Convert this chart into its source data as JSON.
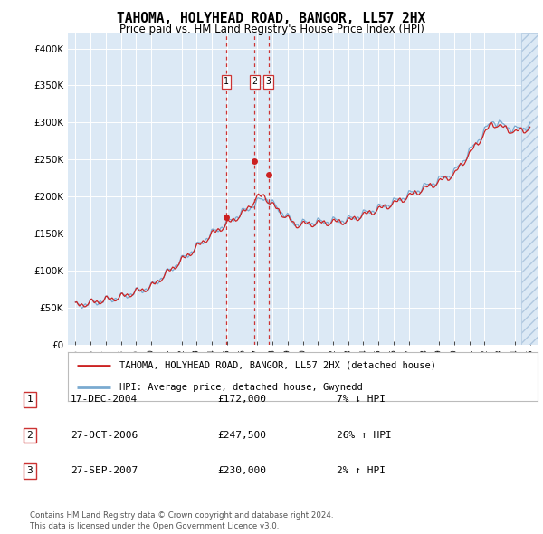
{
  "title": "TAHOMA, HOLYHEAD ROAD, BANGOR, LL57 2HX",
  "subtitle": "Price paid vs. HM Land Registry's House Price Index (HPI)",
  "legend_line1": "TAHOMA, HOLYHEAD ROAD, BANGOR, LL57 2HX (detached house)",
  "legend_line2": "HPI: Average price, detached house, Gwynedd",
  "footer1": "Contains HM Land Registry data © Crown copyright and database right 2024.",
  "footer2": "This data is licensed under the Open Government Licence v3.0.",
  "transactions": [
    {
      "num": 1,
      "date": "17-DEC-2004",
      "price": "£172,000",
      "rel": "7% ↓ HPI",
      "year": 2004.96,
      "value": 172000
    },
    {
      "num": 2,
      "date": "27-OCT-2006",
      "price": "£247,500",
      "rel": "26% ↑ HPI",
      "year": 2006.82,
      "value": 247500
    },
    {
      "num": 3,
      "date": "27-SEP-2007",
      "price": "£230,000",
      "rel": "2% ↑ HPI",
      "year": 2007.74,
      "value": 230000
    }
  ],
  "background_color": "#dce9f5",
  "hpi_color": "#7aaad0",
  "price_color": "#cc2222",
  "dashed_color": "#cc3333",
  "ylim": [
    0,
    420000
  ],
  "yticks": [
    0,
    50000,
    100000,
    150000,
    200000,
    250000,
    300000,
    350000,
    400000
  ],
  "ytick_labels": [
    "£0",
    "£50K",
    "£100K",
    "£150K",
    "£200K",
    "£250K",
    "£300K",
    "£350K",
    "£400K"
  ],
  "xmin": 1994.5,
  "xmax": 2025.5,
  "hatch_start": 2024.42
}
